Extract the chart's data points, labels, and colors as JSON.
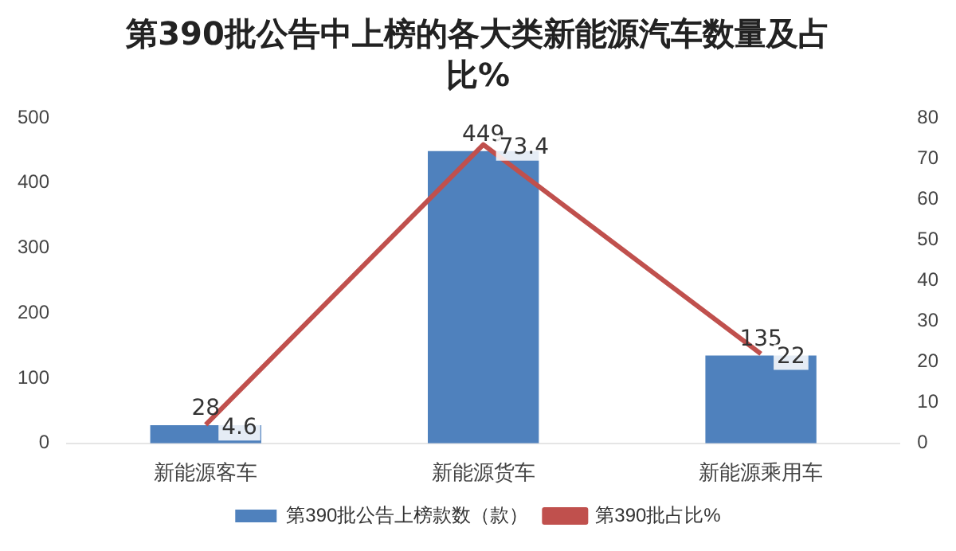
{
  "chart_data": {
    "type": "bar",
    "title": "第390批公告中上榜的各大类新能源汽车数量及占比%",
    "categories": [
      "新能源客车",
      "新能源货车",
      "新能源乘用车"
    ],
    "series": [
      {
        "name": "第390批公告上榜款数（款）",
        "color": "#4f81bd",
        "values": [
          28,
          449,
          135
        ]
      },
      {
        "name": "第390批占比%",
        "type": "line",
        "axis": "y2",
        "color": "#c0504d",
        "values": [
          4.6,
          73.4,
          22
        ]
      }
    ],
    "ylim": [
      0,
      500
    ],
    "yticks": [
      0,
      100,
      200,
      300,
      400,
      500
    ],
    "y2lim": [
      0,
      80
    ],
    "y2ticks": [
      0,
      10,
      20,
      30,
      40,
      50,
      60,
      70,
      80
    ],
    "grid": false,
    "legend": "bottom",
    "data_labels": true
  }
}
